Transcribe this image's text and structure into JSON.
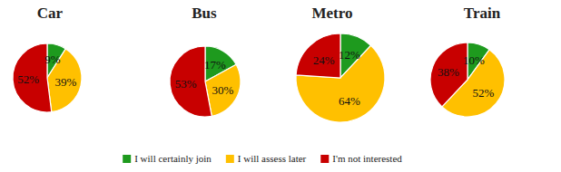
{
  "chart_data": [
    {
      "type": "pie",
      "title": "Car",
      "categories": [
        "I will certainly join",
        "I will assess later",
        "I'm not interested"
      ],
      "values": [
        9,
        39,
        52
      ],
      "value_labels": [
        "9%",
        "39%",
        "52%"
      ],
      "colors": [
        "#1e9a1e",
        "#ffc000",
        "#c80000"
      ],
      "data_labels": true,
      "legend": "bottom"
    },
    {
      "type": "pie",
      "title": "Bus",
      "categories": [
        "I will certainly join",
        "I will assess later",
        "I'm not interested"
      ],
      "values": [
        17,
        30,
        53
      ],
      "value_labels": [
        "17%",
        "30%",
        "53%"
      ],
      "colors": [
        "#1e9a1e",
        "#ffc000",
        "#c80000"
      ],
      "data_labels": true
    },
    {
      "type": "pie",
      "title": "Metro",
      "categories": [
        "I will certainly join",
        "I will assess later",
        "I'm not interested"
      ],
      "values": [
        12,
        64,
        24
      ],
      "value_labels": [
        "12%",
        "64%",
        "24%"
      ],
      "colors": [
        "#1e9a1e",
        "#ffc000",
        "#c80000"
      ],
      "data_labels": true
    },
    {
      "type": "pie",
      "title": "Train",
      "categories": [
        "I will certainly join",
        "I will assess later",
        "I'm not interested"
      ],
      "values": [
        10,
        52,
        38
      ],
      "value_labels": [
        "10%",
        "52%",
        "38%"
      ],
      "colors": [
        "#1e9a1e",
        "#ffc000",
        "#c80000"
      ],
      "data_labels": true
    }
  ]
}
